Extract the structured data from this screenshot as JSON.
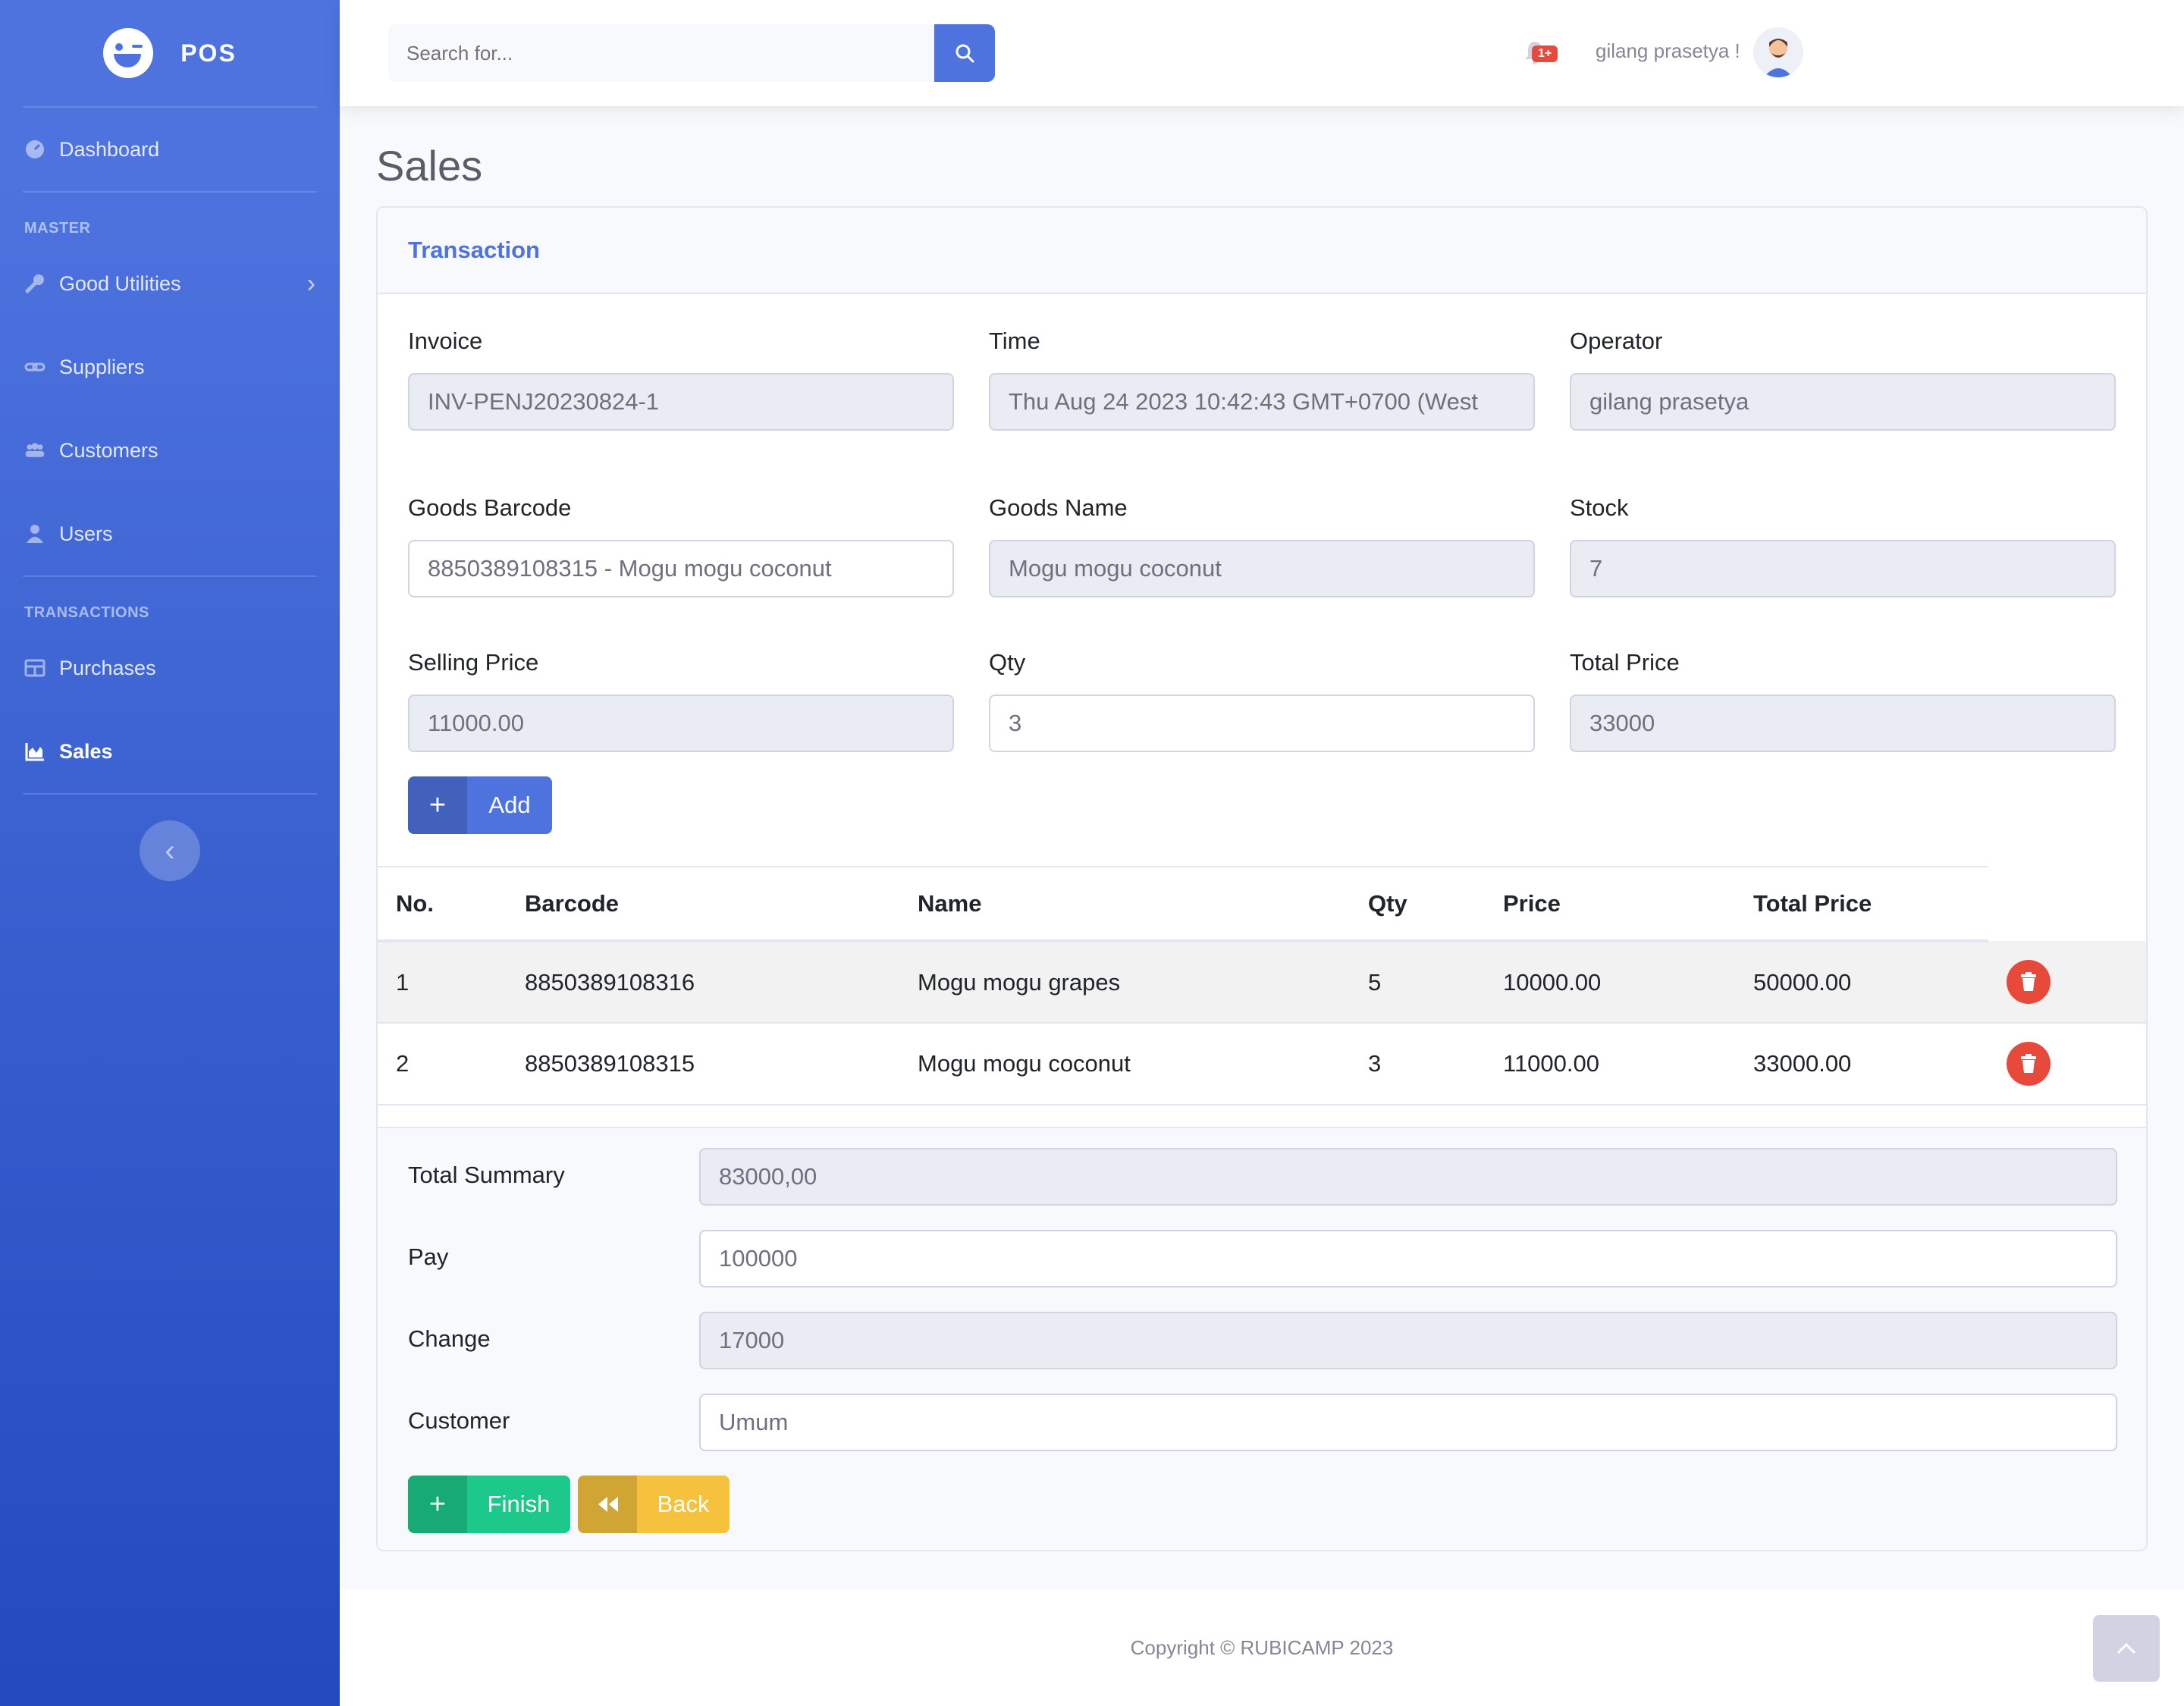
{
  "brand": {
    "name": "POS"
  },
  "sidebar": {
    "dashboard": "Dashboard",
    "section_master": "MASTER",
    "good_utilities": "Good Utilities",
    "suppliers": "Suppliers",
    "customers": "Customers",
    "users": "Users",
    "section_transactions": "TRANSACTIONS",
    "purchases": "Purchases",
    "sales": "Sales"
  },
  "topbar": {
    "search_placeholder": "Search for...",
    "alerts_badge": "1+",
    "user_name": "gilang prasetya !"
  },
  "page": {
    "title": "Sales"
  },
  "card": {
    "title": "Transaction"
  },
  "form": {
    "invoice_label": "Invoice",
    "invoice_value": "INV-PENJ20230824-1",
    "time_label": "Time",
    "time_value": "Thu Aug 24 2023 10:42:43 GMT+0700 (West",
    "operator_label": "Operator",
    "operator_value": "gilang prasetya",
    "barcode_label": "Goods Barcode",
    "barcode_value": "8850389108315 - Mogu mogu coconut",
    "goods_name_label": "Goods Name",
    "goods_name_value": "Mogu mogu coconut",
    "stock_label": "Stock",
    "stock_value": "7",
    "selling_price_label": "Selling Price",
    "selling_price_value": "11000.00",
    "qty_label": "Qty",
    "qty_value": "3",
    "total_price_label": "Total Price",
    "total_price_value": "33000",
    "add_button": "Add"
  },
  "table": {
    "headers": [
      "No.",
      "Barcode",
      "Name",
      "Qty",
      "Price",
      "Total Price"
    ],
    "rows": [
      {
        "no": "1",
        "barcode": "8850389108316",
        "name": "Mogu mogu grapes",
        "qty": "5",
        "price": "10000.00",
        "total": "50000.00"
      },
      {
        "no": "2",
        "barcode": "8850389108315",
        "name": "Mogu mogu coconut",
        "qty": "3",
        "price": "11000.00",
        "total": "33000.00"
      }
    ]
  },
  "summary": {
    "total_label": "Total Summary",
    "total_value": "83000,00",
    "pay_label": "Pay",
    "pay_value": "100000",
    "change_label": "Change",
    "change_value": "17000",
    "customer_label": "Customer",
    "customer_value": "Umum",
    "finish_button": "Finish",
    "back_button": "Back"
  },
  "footer": {
    "copyright": "Copyright © RUBICAMP 2023"
  },
  "colors": {
    "primary": "#4e73df",
    "success": "#1cc88a",
    "warning": "#f6c23e",
    "danger": "#e74a3b"
  }
}
